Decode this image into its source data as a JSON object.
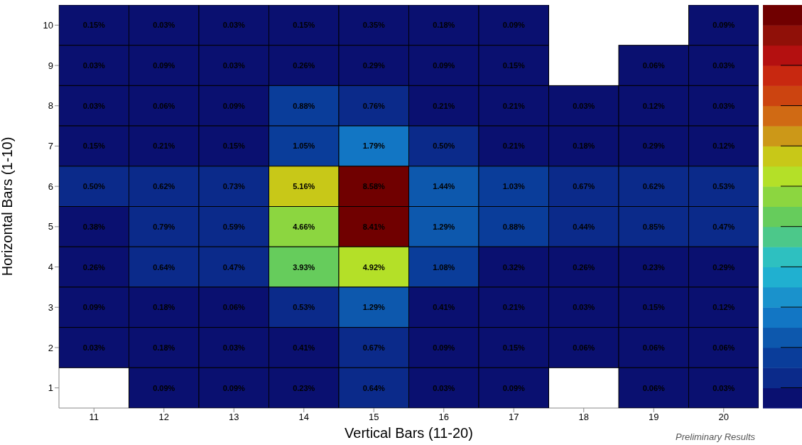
{
  "chart_data": {
    "type": "heatmap",
    "xlabel": "Vertical Bars (11-20)",
    "ylabel": "Horizontal Bars (1-10)",
    "annotations": [
      "Preliminary Results"
    ],
    "categories": [
      "11",
      "12",
      "13",
      "14",
      "15",
      "16",
      "17",
      "18",
      "19",
      "20"
    ],
    "y_categories": [
      "10",
      "9",
      "8",
      "7",
      "6",
      "5",
      "4",
      "3",
      "2",
      "1"
    ],
    "cells": [
      [
        0.15,
        0.03,
        0.03,
        0.15,
        0.35,
        0.18,
        0.09,
        null,
        null,
        0.09
      ],
      [
        0.03,
        0.09,
        0.03,
        0.26,
        0.29,
        0.09,
        0.15,
        null,
        0.06,
        0.03
      ],
      [
        0.03,
        0.06,
        0.09,
        0.88,
        0.76,
        0.21,
        0.21,
        0.03,
        0.12,
        0.03
      ],
      [
        0.15,
        0.21,
        0.15,
        1.05,
        1.79,
        0.5,
        0.21,
        0.18,
        0.29,
        0.12
      ],
      [
        0.5,
        0.62,
        0.73,
        5.16,
        8.58,
        1.44,
        1.03,
        0.67,
        0.62,
        0.53
      ],
      [
        0.38,
        0.79,
        0.59,
        4.66,
        8.41,
        1.29,
        0.88,
        0.44,
        0.85,
        0.47
      ],
      [
        0.26,
        0.64,
        0.47,
        3.93,
        4.92,
        1.08,
        0.32,
        0.26,
        0.23,
        0.29
      ],
      [
        0.09,
        0.18,
        0.06,
        0.53,
        1.29,
        0.41,
        0.21,
        0.03,
        0.15,
        0.12
      ],
      [
        0.03,
        0.18,
        0.03,
        0.41,
        0.67,
        0.09,
        0.15,
        0.06,
        0.06,
        0.06
      ],
      [
        null,
        0.09,
        0.09,
        0.23,
        0.64,
        0.03,
        0.09,
        null,
        0.06,
        0.03
      ]
    ],
    "cell_labels": [
      [
        "0.15%",
        "0.03%",
        "0.03%",
        "0.15%",
        "0.35%",
        "0.18%",
        "0.09%",
        null,
        null,
        "0.09%"
      ],
      [
        "0.03%",
        "0.09%",
        "0.03%",
        "0.26%",
        "0.29%",
        "0.09%",
        "0.15%",
        null,
        "0.06%",
        "0.03%"
      ],
      [
        "0.03%",
        "0.06%",
        "0.09%",
        "0.88%",
        "0.76%",
        "0.21%",
        "0.21%",
        "0.03%",
        "0.12%",
        "0.03%"
      ],
      [
        "0.15%",
        "0.21%",
        "0.15%",
        "1.05%",
        "1.79%",
        "0.50%",
        "0.21%",
        "0.18%",
        "0.29%",
        "0.12%"
      ],
      [
        "0.50%",
        "0.62%",
        "0.73%",
        "5.16%",
        "8.58%",
        "1.44%",
        "1.03%",
        "0.67%",
        "0.62%",
        "0.53%"
      ],
      [
        "0.38%",
        "0.79%",
        "0.59%",
        "4.66%",
        "8.41%",
        "1.29%",
        "0.88%",
        "0.44%",
        "0.85%",
        "0.47%"
      ],
      [
        "0.26%",
        "0.64%",
        "0.47%",
        "3.93%",
        "4.92%",
        "1.08%",
        "0.32%",
        "0.26%",
        "0.23%",
        "0.29%"
      ],
      [
        "0.09%",
        "0.18%",
        "0.06%",
        "0.53%",
        "1.29%",
        "0.41%",
        "0.21%",
        "0.03%",
        "0.15%",
        "0.12%"
      ],
      [
        "0.03%",
        "0.18%",
        "0.03%",
        "0.41%",
        "0.67%",
        "0.09%",
        "0.15%",
        "0.06%",
        "0.06%",
        "0.06%"
      ],
      [
        null,
        "0.09%",
        "0.09%",
        "0.23%",
        "0.64%",
        "0.03%",
        "0.09%",
        null,
        "0.06%",
        "0.03%"
      ]
    ]
  }
}
